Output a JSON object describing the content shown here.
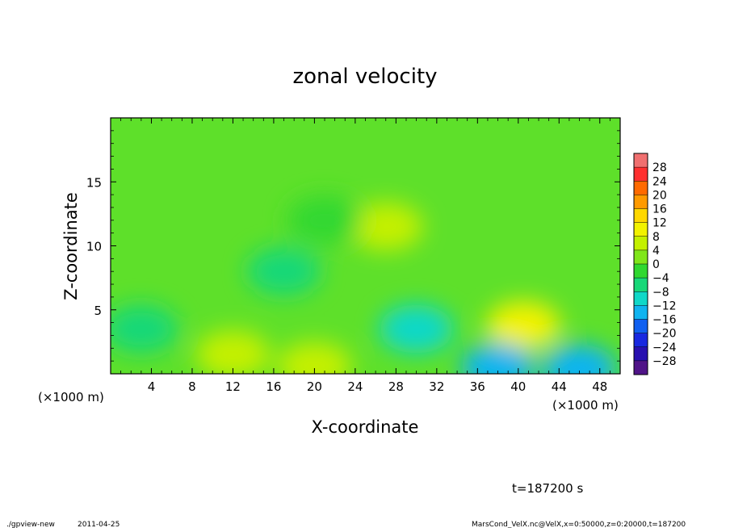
{
  "chart_data": {
    "type": "heatmap",
    "title": "zonal velocity",
    "xlabel": "X-coordinate",
    "ylabel": "Z-coordinate",
    "x_unit_note": "(×1000 m)",
    "y_unit_note": "(×1000 m)",
    "xlim": [
      0,
      50
    ],
    "ylim": [
      0,
      20
    ],
    "x_ticks": [
      "4",
      "8",
      "12",
      "16",
      "20",
      "24",
      "28",
      "32",
      "36",
      "40",
      "44",
      "48"
    ],
    "y_ticks": [
      "5",
      "10",
      "15"
    ],
    "colorbar": {
      "levels": [
        28,
        24,
        20,
        16,
        12,
        8,
        4,
        0,
        -4,
        -8,
        -12,
        -16,
        -20,
        -24,
        -28
      ],
      "level_labels": [
        "28",
        "24",
        "20",
        "16",
        "12",
        "8",
        "4",
        "0",
        "−4",
        "−8",
        "−12",
        "−16",
        "−20",
        "−24",
        "−28"
      ],
      "colors": [
        "#f07070",
        "#ff3030",
        "#ff6a00",
        "#ff9a00",
        "#ffd800",
        "#f2f200",
        "#c4f000",
        "#80e61a",
        "#30d830",
        "#18d878",
        "#10d8c8",
        "#10b4f0",
        "#1060f0",
        "#1828e0",
        "#2810b0",
        "#501488"
      ]
    },
    "features": [
      {
        "x": 27,
        "z": 11.5,
        "value": 6
      },
      {
        "x": 40.5,
        "z": 3.8,
        "value": 8
      },
      {
        "x": 30,
        "z": 3.5,
        "value": -10
      },
      {
        "x": 38,
        "z": 0.5,
        "value": -13
      },
      {
        "x": 46,
        "z": 0.4,
        "value": -14
      },
      {
        "x": 20,
        "z": 0.6,
        "value": 6
      },
      {
        "x": 12,
        "z": 1.5,
        "value": 4
      },
      {
        "x": 3,
        "z": 3.5,
        "value": -5
      },
      {
        "x": 17,
        "z": 8,
        "value": -6
      },
      {
        "x": 21,
        "z": 12,
        "value": -4
      }
    ]
  },
  "time_label": "t=187200 s",
  "footer": {
    "program": "./gpview-new",
    "date": "2011-04-25",
    "source": "MarsCond_VelX.nc@VelX,x=0:50000,z=0:20000,t=187200"
  }
}
